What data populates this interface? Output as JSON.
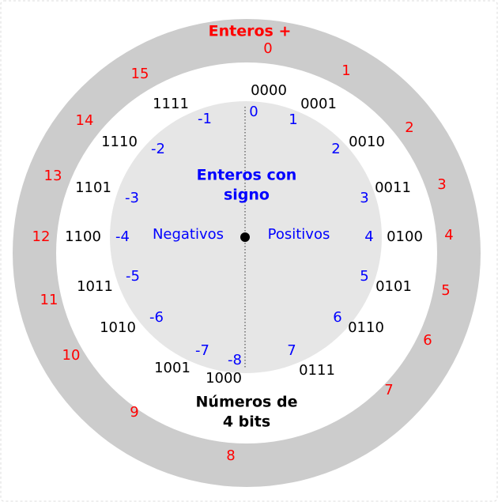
{
  "titles": {
    "unsigned": "Enteros +",
    "signed_line1": "Enteros con",
    "signed_line2": "signo",
    "bits_line1": "Números de",
    "bits_line2": "4 bits",
    "negatives": "Negativos",
    "positives": "Positivos"
  },
  "colors": {
    "outer_ring": "#cccccc",
    "inner_disk": "#e6e6e6",
    "unsigned_text": "#ff0000",
    "signed_text": "#0000ff",
    "binary_text": "#000000"
  },
  "unsigned": [
    "0",
    "1",
    "2",
    "3",
    "4",
    "5",
    "6",
    "7",
    "8",
    "9",
    "10",
    "11",
    "12",
    "13",
    "14",
    "15"
  ],
  "binary": [
    "0000",
    "0001",
    "0010",
    "0011",
    "0100",
    "0101",
    "0110",
    "0111",
    "1000",
    "1001",
    "1010",
    "1011",
    "1100",
    "1101",
    "1110",
    "1111"
  ],
  "signed": [
    "0",
    "1",
    "2",
    "3",
    "4",
    "5",
    "6",
    "7",
    "-8",
    "-7",
    "-6",
    "-5",
    "-4",
    "-3",
    "-2",
    "-1"
  ]
}
